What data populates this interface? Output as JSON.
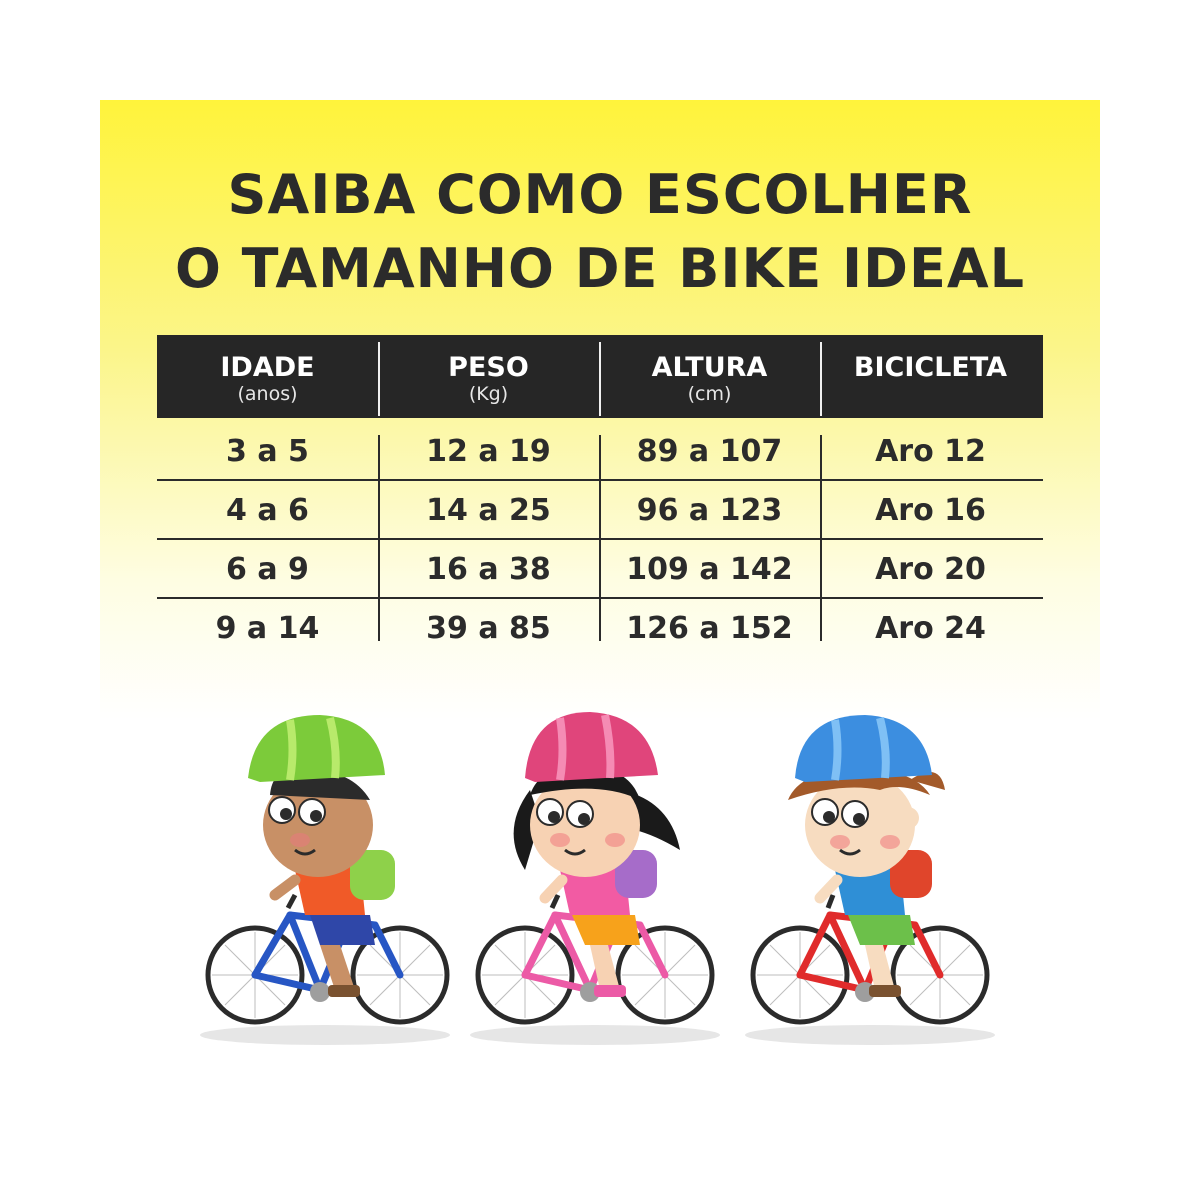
{
  "title": {
    "line1": "SAIBA COMO ESCOLHER",
    "line2": "O TAMANHO DE BIKE IDEAL"
  },
  "table": {
    "headers": [
      {
        "main": "IDADE",
        "sub": "(anos)"
      },
      {
        "main": "PESO",
        "sub": "(Kg)"
      },
      {
        "main": "ALTURA",
        "sub": "(cm)"
      },
      {
        "main": "BICICLETA",
        "sub": ""
      }
    ],
    "rows": [
      [
        "3 a 5",
        "12 a 19",
        "89 a 107",
        "Aro 12"
      ],
      [
        "4 a 6",
        "14 a 25",
        "96 a 123",
        "Aro 16"
      ],
      [
        "6 a 9",
        "16 a 38",
        "109 a 142",
        "Aro 20"
      ],
      [
        "9 a 14",
        "39 a 85",
        "126 a 152",
        "Aro 24"
      ]
    ]
  },
  "colors": {
    "background_top": "#fff33b",
    "header_background": "#262626",
    "text": "#2b2b2b",
    "helmets": [
      "#7ccb3a",
      "#e0457b",
      "#3c8ee0"
    ],
    "bikes": [
      "#2756c4",
      "#ec5aa6",
      "#e02b2b"
    ]
  },
  "illustration": {
    "icon": "kids-riding-bicycles-icon"
  }
}
